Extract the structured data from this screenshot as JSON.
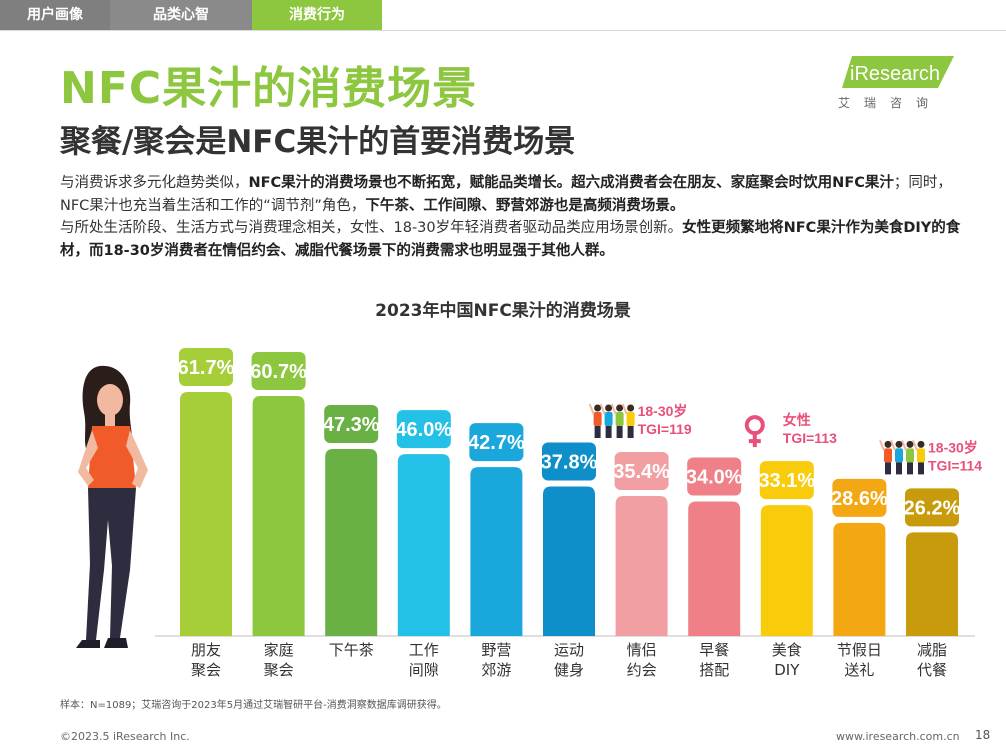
{
  "tabs": [
    "用户画像",
    "品类心智",
    "消费行为"
  ],
  "title": "NFC果汁的消费场景",
  "subtitle": "聚餐/聚会是NFC果汁的首要消费场景",
  "logo": {
    "brand": "iResearch",
    "sub": "艾瑞咨询"
  },
  "body": [
    {
      "t": "与消费诉求多元化趋势类似，",
      "b": false
    },
    {
      "t": "NFC果汁的消费场景也不断拓宽，赋能品类增长。超六成消费者会在朋友、家庭聚会时饮用NFC果汁",
      "b": true
    },
    {
      "t": "；同时，NFC果汁也充当着生活和工作的“调节剂”角色，",
      "b": false
    },
    {
      "t": "下午茶、工作间隙、野营郊游也是高频消费场景。",
      "b": true
    },
    {
      "t": "与所处生活阶段、生活方式与消费理念相关，女性、18-30岁年轻消费者驱动品类应用场景创新。",
      "b": false
    },
    {
      "t": "女性更频繁地将NFC果汁作为美食DIY的食材，而18-30岁消费者在情侣约会、减脂代餐场景下的消费需求也明显强于其他人群。",
      "b": true
    }
  ],
  "chart_data": {
    "type": "bar",
    "title": "2023年中国NFC果汁的消费场景",
    "categories": [
      "朋友\n聚会",
      "家庭\n聚会",
      "下午茶",
      "工作\n间隙",
      "野营\n郊游",
      "运动\n健身",
      "情侣\n约会",
      "早餐\n搭配",
      "美食\nDIY",
      "节假日\n送礼",
      "减脂\n代餐"
    ],
    "values": [
      61.7,
      60.7,
      47.3,
      46.0,
      42.7,
      37.8,
      35.4,
      34.0,
      33.1,
      28.6,
      26.2
    ],
    "value_labels": [
      "61.7%",
      "60.7%",
      "47.3%",
      "46.0%",
      "42.7%",
      "37.8%",
      "35.4%",
      "34.0%",
      "33.1%",
      "28.6%",
      "26.2%"
    ],
    "colors": [
      "#a6ce39",
      "#8dc63f",
      "#69b045",
      "#23c0e8",
      "#1aa7db",
      "#0e8fc9",
      "#f29fa4",
      "#ef8087",
      "#f9cc0b",
      "#f3a712",
      "#c79b0c"
    ],
    "ylim": [
      0,
      70
    ],
    "annotations": [
      {
        "category_index": 6,
        "lines": [
          "18-30岁",
          "TGI=119"
        ],
        "icon": "group-icon"
      },
      {
        "category_index": 8,
        "lines": [
          "女性",
          "TGI=113"
        ],
        "icon": "female-symbol-icon"
      },
      {
        "category_index": 10,
        "lines": [
          "18-30岁",
          "TGI=114"
        ],
        "icon": "group-icon"
      }
    ]
  },
  "footnote": "样本：N=1089；艾瑞咨询于2023年5月通过艾瑞智研平台-消费洞察数据库调研获得。",
  "copyright": "©2023.5 iResearch Inc.",
  "site": "www.iresearch.com.cn",
  "page_number": "18"
}
